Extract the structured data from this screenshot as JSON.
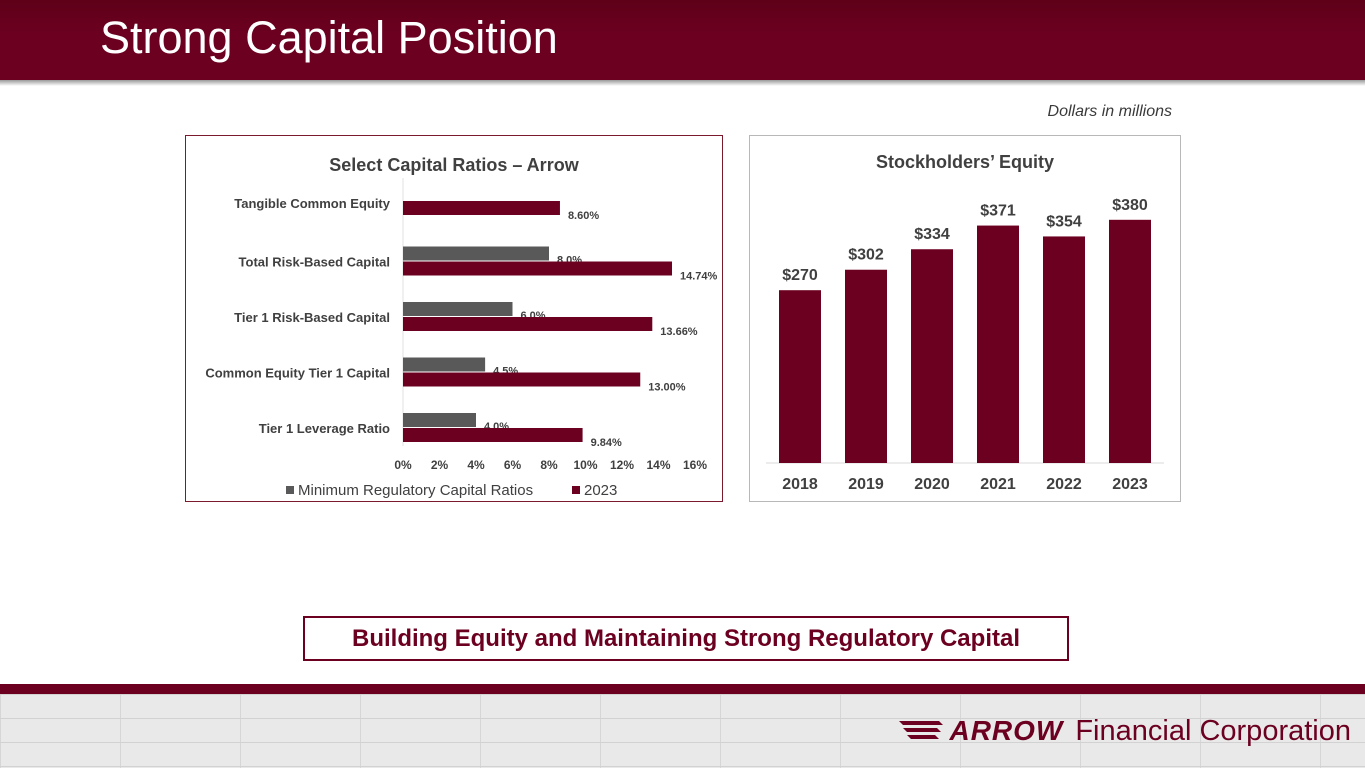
{
  "page": {
    "title": "Strong Capital Position",
    "units_note": "Dollars in millions",
    "banner": "Building Equity and Maintaining Strong Regulatory Capital",
    "logo": {
      "wordmark": "ARROW",
      "name": "Financial Corporation"
    }
  },
  "colors": {
    "brand": "#6b0020",
    "gray": "#595959",
    "text": "#404040"
  },
  "chart_data": [
    {
      "type": "bar",
      "orientation": "horizontal",
      "title": "Select Capital Ratios – Arrow",
      "categories": [
        "Tangible Common Equity",
        "Total Risk-Based Capital",
        "Tier 1 Risk-Based Capital",
        "Common Equity Tier 1 Capital",
        "Tier 1 Leverage Ratio"
      ],
      "series": [
        {
          "name": "Minimum Regulatory Capital Ratios",
          "color": "#595959",
          "values": [
            null,
            8.0,
            6.0,
            4.5,
            4.0
          ],
          "labels": [
            "",
            "8.0%",
            "6.0%",
            "4.5%",
            "4.0%"
          ]
        },
        {
          "name": "2023",
          "color": "#6b0020",
          "values": [
            8.6,
            14.74,
            13.66,
            13.0,
            9.84
          ],
          "labels": [
            "8.60%",
            "14.74%",
            "13.66%",
            "13.00%",
            "9.84%"
          ]
        }
      ],
      "xlim": [
        0,
        16
      ],
      "ticks": [
        "0%",
        "2%",
        "4%",
        "6%",
        "8%",
        "10%",
        "12%",
        "14%",
        "16%"
      ],
      "legend": "bottom"
    },
    {
      "type": "bar",
      "title": "Stockholders’ Equity",
      "categories": [
        "2018",
        "2019",
        "2020",
        "2021",
        "2022",
        "2023"
      ],
      "values": [
        270,
        302,
        334,
        371,
        354,
        380
      ],
      "labels": [
        "$270",
        "$302",
        "$334",
        "$371",
        "$354",
        "$380"
      ],
      "ylim": [
        0,
        450
      ],
      "color": "#6b0020"
    }
  ]
}
